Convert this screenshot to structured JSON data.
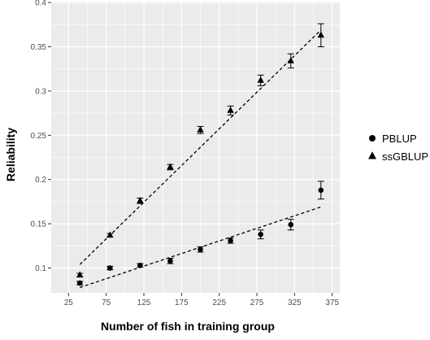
{
  "chart_data": {
    "type": "scatter",
    "title": "",
    "xlabel": "Number of fish in training group",
    "ylabel": "Reliability",
    "xlim": [
      2,
      385
    ],
    "ylim": [
      0.072,
      0.401
    ],
    "x_ticks": [
      25,
      75,
      125,
      175,
      225,
      275,
      325,
      375
    ],
    "y_ticks": [
      0.1,
      0.15,
      0.2,
      0.25,
      0.3,
      0.35,
      0.4
    ],
    "grid": true,
    "background": "#ebebeb",
    "grid_color": "#ffffff",
    "legend_position": "right",
    "series": [
      {
        "name": "PBLUP",
        "marker": "circle",
        "color": "#000000",
        "points": [
          {
            "x": 40,
            "y": 0.083,
            "err": 0.002
          },
          {
            "x": 80,
            "y": 0.1,
            "err": 0.002
          },
          {
            "x": 120,
            "y": 0.103,
            "err": 0.002
          },
          {
            "x": 160,
            "y": 0.108,
            "err": 0.003
          },
          {
            "x": 200,
            "y": 0.121,
            "err": 0.003
          },
          {
            "x": 240,
            "y": 0.131,
            "err": 0.003
          },
          {
            "x": 280,
            "y": 0.138,
            "err": 0.005
          },
          {
            "x": 320,
            "y": 0.149,
            "err": 0.006
          },
          {
            "x": 360,
            "y": 0.188,
            "err": 0.01
          }
        ],
        "trend": {
          "x": [
            40,
            360
          ],
          "y": [
            0.078,
            0.169
          ]
        }
      },
      {
        "name": "ssGBLUP",
        "marker": "triangle",
        "color": "#000000",
        "points": [
          {
            "x": 40,
            "y": 0.092,
            "err": 0.002
          },
          {
            "x": 80,
            "y": 0.137,
            "err": 0.002
          },
          {
            "x": 120,
            "y": 0.176,
            "err": 0.003
          },
          {
            "x": 160,
            "y": 0.214,
            "err": 0.003
          },
          {
            "x": 200,
            "y": 0.256,
            "err": 0.004
          },
          {
            "x": 240,
            "y": 0.278,
            "err": 0.005
          },
          {
            "x": 280,
            "y": 0.312,
            "err": 0.006
          },
          {
            "x": 320,
            "y": 0.334,
            "err": 0.008
          },
          {
            "x": 360,
            "y": 0.363,
            "err": 0.013
          }
        ],
        "trend": {
          "x": [
            40,
            360
          ],
          "y": [
            0.104,
            0.369
          ]
        }
      }
    ]
  }
}
